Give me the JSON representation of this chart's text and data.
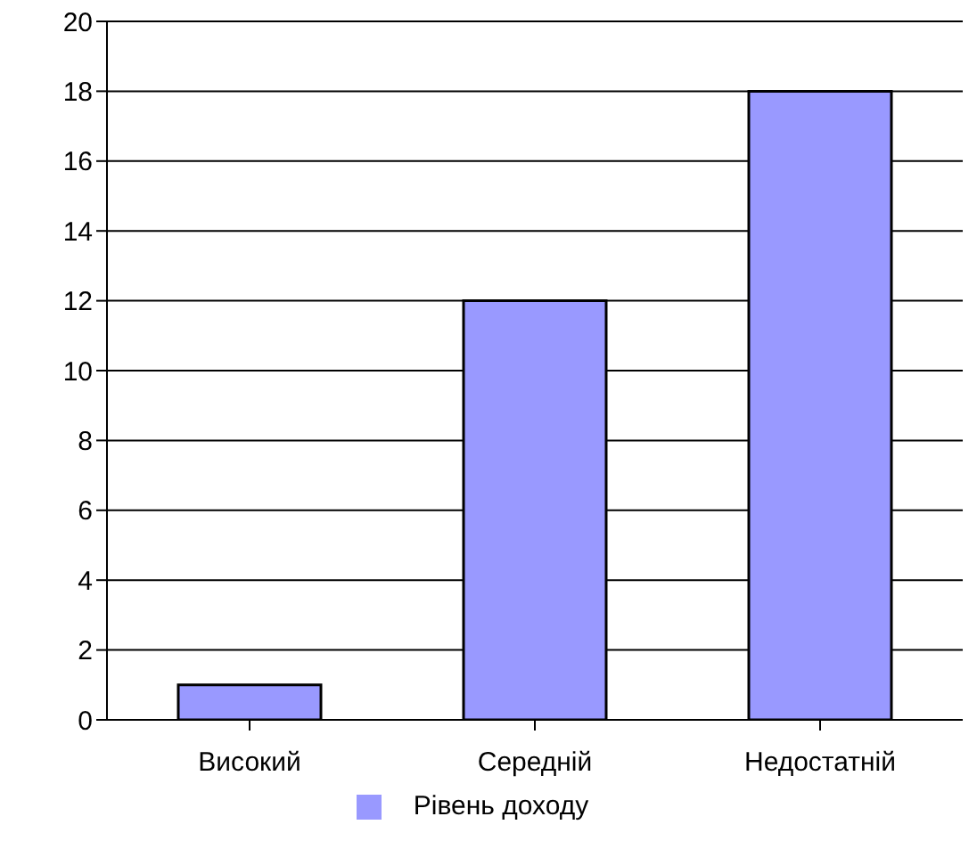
{
  "chart_data": {
    "type": "bar",
    "categories": [
      "Високий",
      "Середній",
      "Недостатній"
    ],
    "series": [
      {
        "name": "Рівень доходу",
        "color": "#9999ff",
        "values": [
          1,
          12,
          18
        ]
      }
    ],
    "ylim": [
      0,
      20
    ],
    "yticks": [
      0,
      2,
      4,
      6,
      8,
      10,
      12,
      14,
      16,
      18,
      20
    ],
    "grid": "y",
    "legend": "bottom"
  }
}
